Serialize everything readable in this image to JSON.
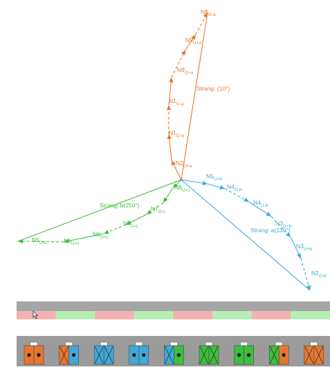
{
  "colors": {
    "orange": "#e8772e",
    "blue": "#3fa9d8",
    "green": "#3cbf3c",
    "bar_gray": "#a6a6a6",
    "seg_pink": "#f5b2b2",
    "seg_green": "#b6f0b6",
    "slot_bg": "#9b9b9b"
  },
  "phasor": {
    "strings": [
      {
        "phase": "a",
        "color": "orange",
        "label": "Strang: (10°)",
        "nodes": [
          {
            "name": "N2",
            "sub": "O+a"
          },
          {
            "name": "N1",
            "sub": "O-a"
          },
          {
            "name": "N1",
            "sub": "U-a"
          },
          {
            "name": "N9",
            "sub": "O+a"
          },
          {
            "name": "N9",
            "sub": "U+a"
          },
          {
            "name": "N8",
            "sub": "O-a"
          }
        ]
      },
      {
        "phase": "b",
        "color": "blue",
        "label": "Strang: a(130°)",
        "nodes": [
          {
            "name": "N5",
            "sub": "U+b"
          },
          {
            "name": "N4",
            "sub": "O-b"
          },
          {
            "name": "N4",
            "sub": "U-b"
          },
          {
            "name": "N3",
            "sub": "O+b"
          },
          {
            "name": "N3",
            "sub": "U+b"
          },
          {
            "name": "N2",
            "sub": "O-b"
          }
        ]
      },
      {
        "phase": "c",
        "color": "green",
        "label": "Strang: b(250°)",
        "nodes": [
          {
            "name": "N8",
            "sub": "U+c"
          },
          {
            "name": "N7",
            "sub": "O-c"
          },
          {
            "name": "N7",
            "sub": "U-c"
          },
          {
            "name": "N6",
            "sub": "O+c"
          },
          {
            "name": "N6",
            "sub": "U+c"
          },
          {
            "name": "N5",
            "sub": "O-c"
          }
        ]
      }
    ]
  },
  "segment_bar": {
    "segments": [
      "pink",
      "green",
      "pink",
      "green",
      "pink",
      "green",
      "pink",
      "green"
    ]
  },
  "slots": {
    "items": [
      {
        "top": "orange",
        "bottom": "orange",
        "type": "dots"
      },
      {
        "top": "orange",
        "bottom": "blue",
        "type": "x-dot"
      },
      {
        "top": "blue",
        "bottom": "blue",
        "type": "cross"
      },
      {
        "top": "blue",
        "bottom": "blue",
        "type": "dots"
      },
      {
        "top": "blue",
        "bottom": "green",
        "type": "x-dot"
      },
      {
        "top": "green",
        "bottom": "green",
        "type": "cross"
      },
      {
        "top": "green",
        "bottom": "green",
        "type": "dots"
      },
      {
        "top": "green",
        "bottom": "orange",
        "type": "x-dot"
      },
      {
        "top": "orange",
        "bottom": "orange",
        "type": "cross"
      }
    ]
  }
}
